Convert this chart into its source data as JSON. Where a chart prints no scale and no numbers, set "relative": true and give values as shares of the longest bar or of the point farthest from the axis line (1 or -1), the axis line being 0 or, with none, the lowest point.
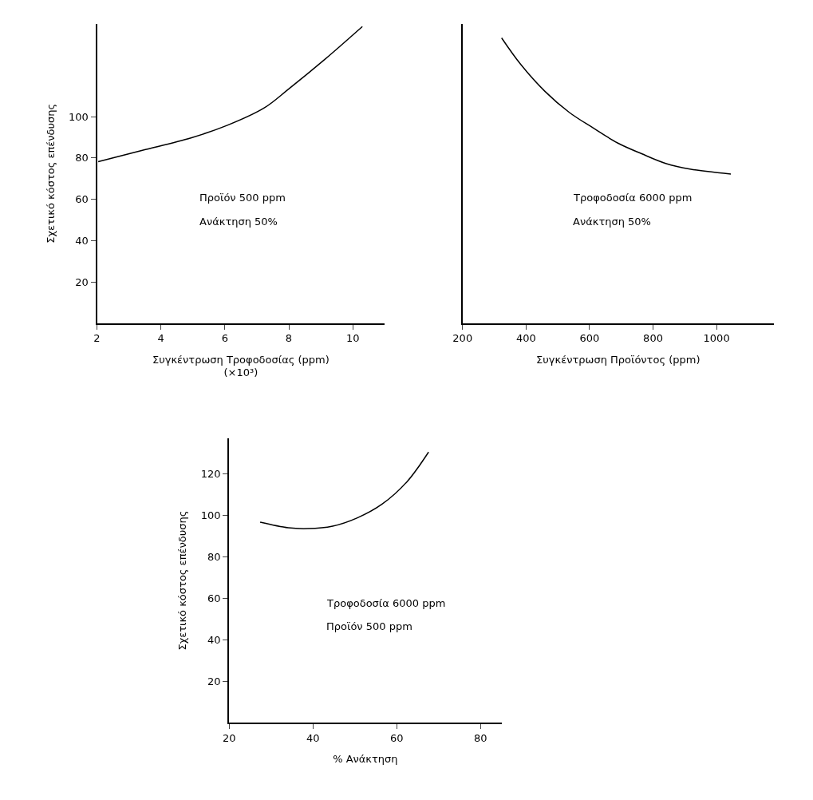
{
  "chart_data": [
    {
      "type": "line",
      "xlabel": "Συγκέντρωση Τροφοδοσίας (ppm)\n(×10³)",
      "ylabel": "Σχετικό κόστος επένδυσης",
      "x": [
        2.04,
        3.4,
        4.94,
        6.08,
        7.23,
        7.99,
        9.14,
        10.3
      ],
      "values": [
        78.2,
        83.6,
        89.7,
        95.8,
        104.2,
        113.3,
        127.9,
        143.6
      ],
      "color": "#000000",
      "xlim": [
        2,
        11
      ],
      "ylim": [
        0,
        145
      ],
      "xticks": [
        2,
        4,
        6,
        8,
        10
      ],
      "yticks": [
        20,
        40,
        60,
        80,
        100
      ],
      "annotations": [
        "Προϊόν 500 ppm",
        "Ανάκτηση 50%"
      ]
    },
    {
      "type": "line",
      "xlabel": "Συγκέντρωση Προϊόντος (ppm)",
      "relative": true,
      "x": [
        323,
        384,
        460,
        536,
        612,
        688,
        764,
        840,
        916,
        1045
      ],
      "values": [
        1,
        0.906,
        0.812,
        0.739,
        0.684,
        0.632,
        0.594,
        0.56,
        0.54,
        0.523
      ],
      "color": "#000000",
      "xlim": [
        200,
        1180
      ],
      "xticks": [
        200,
        400,
        600,
        800,
        1000
      ],
      "annotations": [
        "Τροφοδοσία 6000 ppm",
        "Ανάκτηση 50%"
      ]
    },
    {
      "type": "line",
      "xlabel": "% Ανάκτηση",
      "ylabel": "Σχετικό κόστος επένδυσης",
      "x": [
        27.4,
        34.1,
        38.8,
        44.7,
        50.6,
        56.5,
        62.4,
        67.6
      ],
      "values": [
        96.6,
        93.9,
        93.5,
        94.7,
        98.7,
        105.3,
        116,
        130.4
      ],
      "color": "#000000",
      "xlim": [
        20,
        85
      ],
      "ylim": [
        0,
        137
      ],
      "xticks": [
        20,
        40,
        60,
        80
      ],
      "yticks": [
        20,
        40,
        60,
        80,
        100,
        120
      ],
      "annotations": [
        "Τροφοδοσία 6000 ppm",
        "Προϊόν 500 ppm"
      ]
    }
  ]
}
